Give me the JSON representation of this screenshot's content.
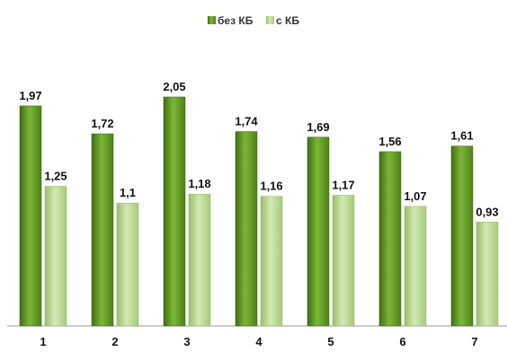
{
  "chart_data": {
    "type": "bar",
    "categories": [
      "1",
      "2",
      "3",
      "4",
      "5",
      "6",
      "7"
    ],
    "series": [
      {
        "name": "без КБ",
        "values": [
          1.97,
          1.72,
          2.05,
          1.74,
          1.69,
          1.56,
          1.61
        ],
        "labels": [
          "1,97",
          "1,72",
          "2,05",
          "1,74",
          "1,69",
          "1,56",
          "1,61"
        ],
        "color": "#5f9a22"
      },
      {
        "name": "с КБ",
        "values": [
          1.25,
          1.1,
          1.18,
          1.16,
          1.17,
          1.07,
          0.93
        ],
        "labels": [
          "1,25",
          "1,1",
          "1,18",
          "1,16",
          "1,17",
          "1,07",
          "0,93"
        ],
        "color": "#b7d889"
      }
    ],
    "title": "",
    "xlabel": "",
    "ylabel": "",
    "ylim": [
      0,
      2.1
    ],
    "grid": false,
    "legend": "top-center"
  }
}
